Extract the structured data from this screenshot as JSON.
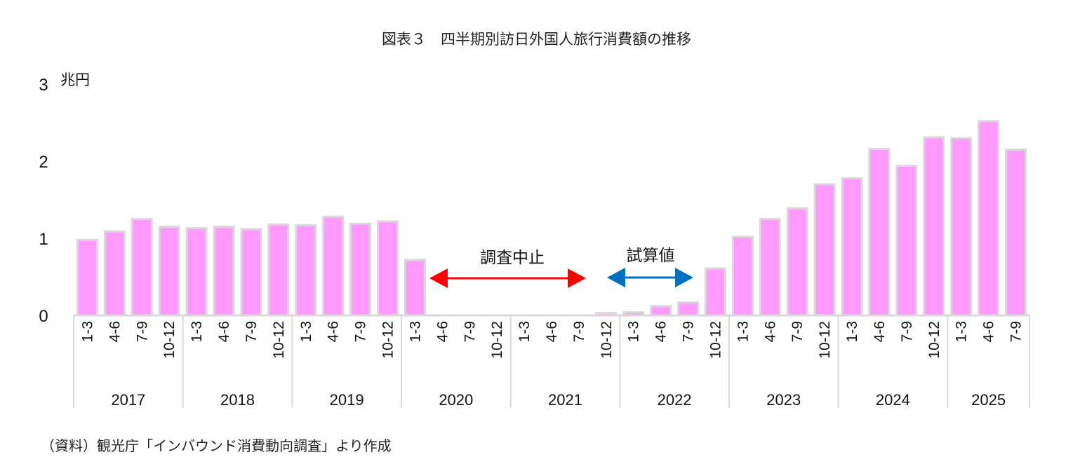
{
  "chart_data": {
    "type": "bar",
    "title": "図表３　四半期別訪日外国人旅行消費額の推移",
    "ylabel": "兆円",
    "ylim": [
      0,
      3
    ],
    "yticks": [
      "0",
      "1",
      "2",
      "3"
    ],
    "grid": false,
    "years": [
      "2017",
      "2018",
      "2019",
      "2020",
      "2021",
      "2022",
      "2023",
      "2024",
      "2025"
    ],
    "quarters": [
      [
        "1-3",
        "4-6",
        "7-9",
        "10-12"
      ],
      [
        "1-3",
        "4-6",
        "7-9",
        "10-12"
      ],
      [
        "1-3",
        "4-6",
        "7-9",
        "10-12"
      ],
      [
        "1-3",
        "4-6",
        "7-9",
        "10-12"
      ],
      [
        "1-3",
        "4-6",
        "7-9",
        "10-12"
      ],
      [
        "1-3",
        "4-6",
        "7-9",
        "10-12"
      ],
      [
        "1-3",
        "4-6",
        "7-9",
        "10-12"
      ],
      [
        "1-3",
        "4-6",
        "7-9",
        "10-12"
      ],
      [
        "1-3",
        "4-6",
        "7-9"
      ]
    ],
    "values": [
      0.98,
      1.09,
      1.25,
      1.15,
      1.13,
      1.15,
      1.12,
      1.18,
      1.17,
      1.28,
      1.19,
      1.22,
      0.72,
      0,
      0,
      0,
      0,
      0,
      0,
      0.03,
      0.04,
      0.12,
      0.17,
      0.61,
      1.02,
      1.25,
      1.39,
      1.7,
      1.78,
      2.16,
      1.94,
      2.31,
      2.3,
      2.52,
      2.15
    ],
    "bar_color": "#FF99FF",
    "bar_border": "#D9D9D9",
    "annotations": [
      {
        "text": "調査中止",
        "color": "#FF0000",
        "from": "2020 4-6",
        "to": "2021 7-9"
      },
      {
        "text": "試算値",
        "color": "#0070C0",
        "from": "2021 10-12",
        "to": "2022 7-9"
      }
    ]
  },
  "source": "（資料）観光庁「インバウンド消費動向調査」より作成"
}
